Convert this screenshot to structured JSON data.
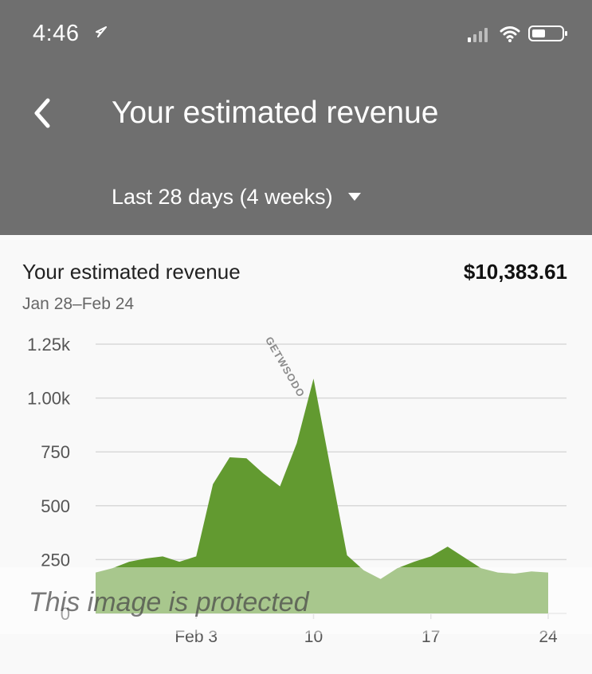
{
  "status_bar": {
    "time": "4:46",
    "location_icon": "location-arrow-icon",
    "signal_icon": "cellular-signal-icon",
    "wifi_icon": "wifi-icon",
    "battery_icon": "battery-icon"
  },
  "header": {
    "back_icon": "back-chevron-icon",
    "title": "Your estimated revenue",
    "range_label": "Last 28 days (4 weeks)",
    "dropdown_icon": "triangle-down-icon"
  },
  "card": {
    "title": "Your estimated revenue",
    "value": "$10,383.61",
    "date_range": "Jan 28–Feb 24"
  },
  "chart_data": {
    "type": "area",
    "title": "",
    "xlabel": "",
    "ylabel": "",
    "ylim": [
      0,
      1250
    ],
    "grid": true,
    "y_ticks": [
      "0",
      "250",
      "500",
      "750",
      "1.00k",
      "1.25k"
    ],
    "x_ticks": [
      "Feb 3",
      "10",
      "17",
      "24"
    ],
    "x": [
      "Jan 28",
      "Jan 29",
      "Jan 30",
      "Jan 31",
      "Feb 1",
      "Feb 2",
      "Feb 3",
      "Feb 4",
      "Feb 5",
      "Feb 6",
      "Feb 7",
      "Feb 8",
      "Feb 9",
      "Feb 10",
      "Feb 11",
      "Feb 12",
      "Feb 13",
      "Feb 14",
      "Feb 15",
      "Feb 16",
      "Feb 17",
      "Feb 18",
      "Feb 19",
      "Feb 20",
      "Feb 21",
      "Feb 22",
      "Feb 23",
      "Feb 24"
    ],
    "series": [
      {
        "values": [
          190,
          210,
          240,
          255,
          265,
          240,
          265,
          600,
          725,
          720,
          650,
          590,
          790,
          1090,
          680,
          270,
          200,
          160,
          210,
          240,
          265,
          310,
          260,
          210,
          190,
          185,
          195,
          190
        ],
        "color": "#629a30"
      }
    ]
  },
  "overlays": {
    "protected_text": "This image is protected",
    "watermark_text": "GETWSODO"
  },
  "colors": {
    "header_bg": "#6f6f6f",
    "card_bg": "#f9f9f9",
    "series": "#629a30",
    "grid": "#d9d9d9"
  }
}
